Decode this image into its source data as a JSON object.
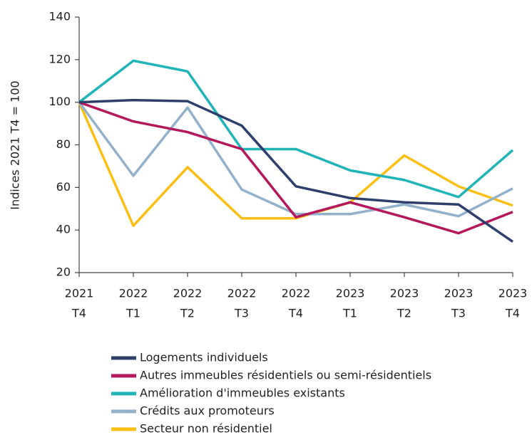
{
  "chart_data": {
    "type": "line",
    "y_label": "Indices 2021 T4 = 100",
    "categories": [
      [
        "2021",
        "T4"
      ],
      [
        "2022",
        "T1"
      ],
      [
        "2022",
        "T2"
      ],
      [
        "2022",
        "T3"
      ],
      [
        "2022",
        "T4"
      ],
      [
        "2023",
        "T1"
      ],
      [
        "2023",
        "T2"
      ],
      [
        "2023",
        "T3"
      ],
      [
        "2023",
        "T4"
      ]
    ],
    "ylim": [
      20,
      140
    ],
    "yticks": [
      20,
      40,
      60,
      80,
      100,
      120,
      140
    ],
    "grid": false,
    "legend": "bottom",
    "series": [
      {
        "name": "Logements individuels",
        "color": "#2f3f6d",
        "values": [
          100,
          101,
          100.5,
          89,
          60.5,
          55,
          53,
          52,
          34.5
        ]
      },
      {
        "name": "Autres immeubles résidentiels ou semi-résidentiels",
        "color": "#b5175b",
        "values": [
          100,
          91,
          86,
          78,
          46,
          53,
          46,
          38.5,
          48.5
        ]
      },
      {
        "name": "Amélioration d'immeubles existants",
        "color": "#1fb4b8",
        "values": [
          100,
          119.5,
          114.5,
          78,
          78,
          68,
          63.5,
          55.5,
          77.5
        ]
      },
      {
        "name": "Crédits aux promoteurs",
        "color": "#94b1cc",
        "values": [
          100,
          65.5,
          97.5,
          59,
          47.5,
          47.5,
          52,
          46.5,
          59.5
        ]
      },
      {
        "name": "Secteur non résidentiel",
        "color": "#fbbf13",
        "values": [
          100,
          42,
          69.5,
          45.5,
          45.5,
          53,
          75,
          60.5,
          51.5
        ]
      }
    ]
  }
}
